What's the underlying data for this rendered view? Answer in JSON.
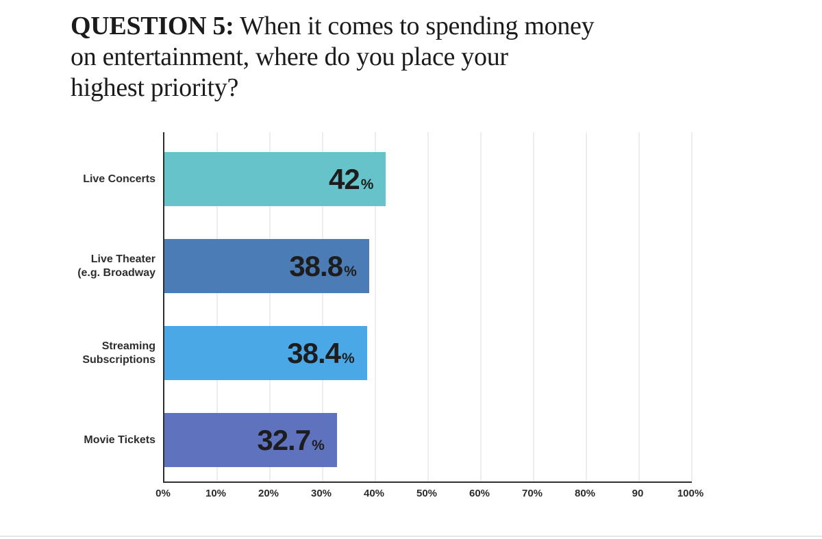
{
  "page": {
    "background": "#ffffff",
    "bottom_divider_color": "#e3e7e7"
  },
  "title": {
    "bold_prefix": "QUESTION 5:",
    "line1_rest": "When it comes to spending money",
    "line2": "on entertainment, where do you place your",
    "line3": "highest priority?"
  },
  "chart_data": {
    "type": "bar",
    "orientation": "horizontal",
    "title": "QUESTION 5: When it comes to spending money on entertainment, where do you place your highest priority?",
    "categories": [
      "Live Concerts",
      "Live Theater (e.g. Broadway",
      "Streaming Subscriptions",
      "Movie Tickets"
    ],
    "values": [
      42,
      38.8,
      38.4,
      32.7
    ],
    "display_values": [
      "42",
      "38.8",
      "38.4",
      "32.7"
    ],
    "unit_suffix": "%",
    "bar_colors": [
      "#66C3CA",
      "#4C7CB5",
      "#4BA8E6",
      "#5F72BE"
    ],
    "x_ticks": [
      "0%",
      "10%",
      "20%",
      "30%",
      "40%",
      "50%",
      "60%",
      "70%",
      "80%",
      "90",
      "100%"
    ],
    "xlim": [
      0,
      100
    ],
    "grid": true,
    "legend": false,
    "axis_color": "#2e2e2e",
    "gridline_color": "#ededed",
    "value_label_color": "#1d1d1d",
    "category_label_color": "#2d2d2d",
    "tick_label_color": "#2b2b2b"
  }
}
